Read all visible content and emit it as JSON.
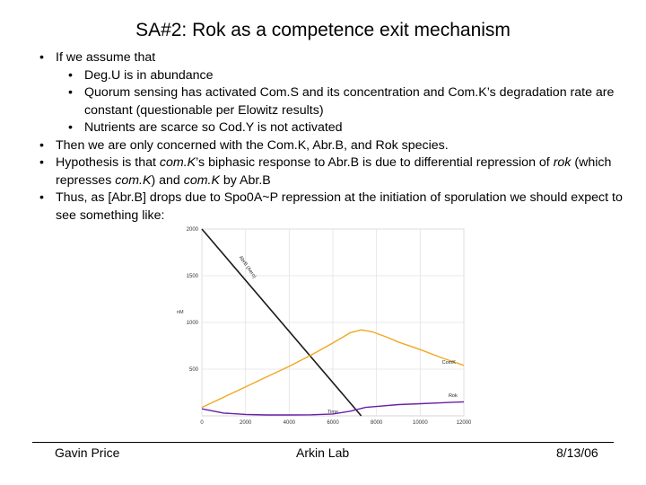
{
  "slide": {
    "title": "SA#2: Rok as a competence exit mechanism",
    "bullets": [
      {
        "level": 1,
        "parts": [
          {
            "t": "If we assume that"
          }
        ]
      },
      {
        "level": 2,
        "parts": [
          {
            "t": "Deg.U is in abundance"
          }
        ]
      },
      {
        "level": 2,
        "parts": [
          {
            "t": "Quorum sensing has activated Com.S and its concentration and Com.K’s degradation rate are constant (questionable per Elowitz results)"
          }
        ]
      },
      {
        "level": 2,
        "parts": [
          {
            "t": "Nutrients are scarce so Cod.Y is not activated"
          }
        ]
      },
      {
        "level": 1,
        "parts": [
          {
            "t": "Then we are only concerned with the Com.K, Abr.B, and Rok species."
          }
        ]
      },
      {
        "level": 1,
        "parts": [
          {
            "t": "Hypothesis is that "
          },
          {
            "t": "com.K",
            "i": true
          },
          {
            "t": "’s biphasic response to Abr.B is due to differential repression of "
          },
          {
            "t": "rok",
            "i": true
          },
          {
            "t": " (which represses "
          },
          {
            "t": "com.K",
            "i": true
          },
          {
            "t": ") and "
          },
          {
            "t": "com.K",
            "i": true
          },
          {
            "t": " by Abr.B"
          }
        ]
      },
      {
        "level": 1,
        "parts": [
          {
            "t": "Thus, as [Abr.B] drops due to Spo0A~P repression at the initiation of sporulation we should expect to see something like:"
          }
        ]
      }
    ]
  },
  "chart_data": {
    "type": "line",
    "title": "",
    "xlabel": "Time",
    "ylabel": "nM",
    "xlim": [
      0,
      12000
    ],
    "ylim": [
      0,
      2000
    ],
    "xticks": [
      0,
      2000,
      4000,
      6000,
      8000,
      10000,
      12000
    ],
    "yticks": [
      500,
      1000,
      1500,
      2000
    ],
    "grid": true,
    "series": [
      {
        "name": "AbrB (Aero)",
        "color": "#1a1a1a",
        "x": [
          0,
          7300
        ],
        "y": [
          2000,
          0
        ]
      },
      {
        "name": "ComK",
        "color": "#f0a820",
        "x": [
          0,
          1000,
          2000,
          3000,
          4000,
          5000,
          6000,
          6800,
          7300,
          7800,
          8500,
          9000,
          10000,
          11000,
          12000
        ],
        "y": [
          90,
          200,
          310,
          420,
          530,
          650,
          780,
          890,
          920,
          900,
          840,
          790,
          710,
          620,
          540
        ]
      },
      {
        "name": "Rok",
        "color": "#6a1fa8",
        "x": [
          0,
          1000,
          2000,
          3000,
          4000,
          5000,
          6000,
          6800,
          7500,
          8000,
          9000,
          10000,
          11000,
          12000
        ],
        "y": [
          75,
          30,
          15,
          10,
          10,
          12,
          20,
          50,
          90,
          100,
          120,
          130,
          140,
          150
        ]
      }
    ],
    "annotations": [
      {
        "text": "AbrB (Aero)",
        "series": 0
      },
      {
        "text": "ComK",
        "series": 1
      },
      {
        "text": "Rok",
        "series": 2
      }
    ]
  },
  "footer": {
    "author": "Gavin Price",
    "lab": "Arkin Lab",
    "date": "8/13/06"
  }
}
